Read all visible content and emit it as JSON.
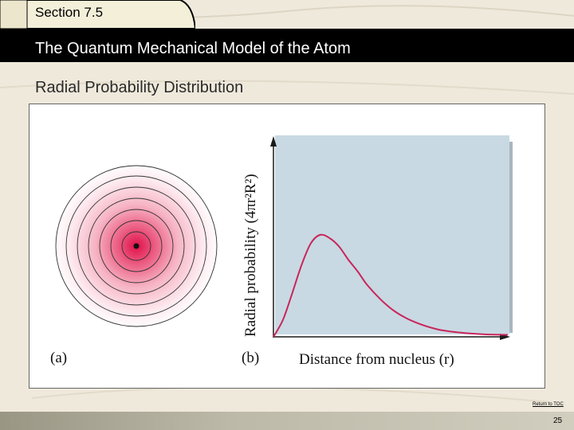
{
  "header": {
    "section": "Section 7.5",
    "title": "The Quantum Mechanical Model of the Atom",
    "subtitle": "Radial Probability Distribution"
  },
  "figure": {
    "panel_a_label": "(a)",
    "panel_b_label": "(b)",
    "y_axis_label": "Radial probability (4πr²R²)",
    "x_axis_label": "Distance from nucleus (r)"
  },
  "chart_data": {
    "type": "line",
    "x": [
      0,
      0.2,
      0.4,
      0.6,
      0.8,
      1.0,
      1.2,
      1.4,
      1.6,
      1.8,
      2.0,
      2.3,
      2.6,
      3.0,
      3.5,
      4.0,
      4.5,
      5.0
    ],
    "series": [
      {
        "values": [
          0,
          0.1,
          0.26,
          0.43,
          0.56,
          0.61,
          0.59,
          0.54,
          0.46,
          0.39,
          0.31,
          0.22,
          0.15,
          0.09,
          0.045,
          0.025,
          0.015,
          0.012
        ]
      }
    ],
    "xlim": [
      0,
      5
    ],
    "ylim": [
      0,
      1.2
    ],
    "xlabel": "Distance from nucleus (r)",
    "ylabel": "Radial probability (4πr²R²)",
    "grid": false,
    "line_color": "#c8265a",
    "plot_background": "#c8d9e3"
  },
  "footer": {
    "return_link": "Return to TOC",
    "page_number": "25"
  },
  "colors": {
    "title_bar": "#000000",
    "section_tab": "#f3efd9",
    "background": "#efe9dc"
  }
}
